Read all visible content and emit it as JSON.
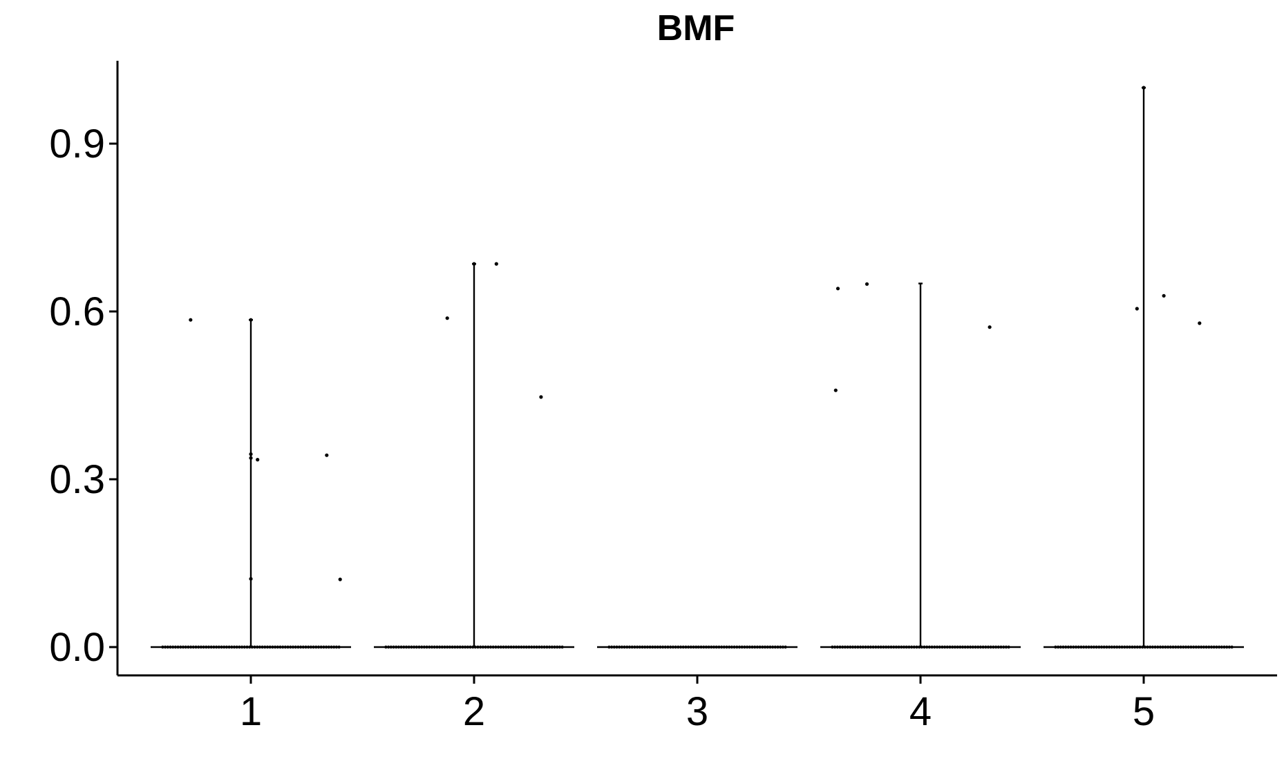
{
  "chart_data": {
    "type": "violin",
    "title": "BMF",
    "xlabel": "",
    "ylabel": "",
    "categories": [
      "1",
      "2",
      "3",
      "4",
      "5"
    ],
    "ylim": [
      -0.05,
      1.05
    ],
    "yticks": [
      0.0,
      0.3,
      0.6,
      0.9
    ],
    "ytick_labels": [
      "0.0",
      "0.3",
      "0.6",
      "0.9"
    ],
    "grid": false,
    "legend": "none",
    "colors": {
      "outline": "#000000",
      "point": "#000000",
      "background": "#ffffff"
    },
    "series": [
      {
        "category": "1",
        "violin_max": 0.585,
        "points": [
          {
            "jitter": -0.27,
            "y": 0.585
          },
          {
            "jitter": 0.0,
            "y": 0.585
          },
          {
            "jitter": 0.0,
            "y": 0.345
          },
          {
            "jitter": 0.0,
            "y": 0.338
          },
          {
            "jitter": 0.03,
            "y": 0.335
          },
          {
            "jitter": 0.34,
            "y": 0.343
          },
          {
            "jitter": 0.0,
            "y": 0.122
          },
          {
            "jitter": 0.4,
            "y": 0.121
          }
        ]
      },
      {
        "category": "2",
        "violin_max": 0.685,
        "points": [
          {
            "jitter": 0.0,
            "y": 0.685
          },
          {
            "jitter": 0.1,
            "y": 0.685
          },
          {
            "jitter": -0.12,
            "y": 0.588
          },
          {
            "jitter": 0.3,
            "y": 0.447
          }
        ]
      },
      {
        "category": "3",
        "violin_max": 0.0,
        "points": []
      },
      {
        "category": "4",
        "violin_max": 0.65,
        "points": [
          {
            "jitter": -0.37,
            "y": 0.641
          },
          {
            "jitter": -0.24,
            "y": 0.649
          },
          {
            "jitter": -0.38,
            "y": 0.459
          },
          {
            "jitter": 0.31,
            "y": 0.572
          }
        ]
      },
      {
        "category": "5",
        "violin_max": 1.0,
        "points": [
          {
            "jitter": 0.0,
            "y": 1.0
          },
          {
            "jitter": -0.03,
            "y": 0.605
          },
          {
            "jitter": 0.09,
            "y": 0.628
          },
          {
            "jitter": 0.25,
            "y": 0.579
          }
        ]
      }
    ]
  }
}
